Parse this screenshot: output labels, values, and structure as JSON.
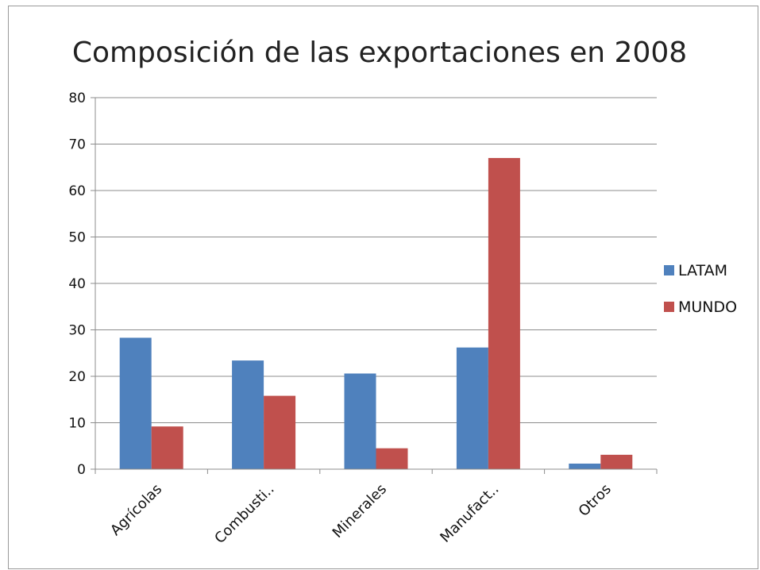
{
  "chart_data": {
    "type": "bar",
    "title": "Composición de las exportaciones en 2008",
    "categories": [
      "Agrícolas",
      "Combusti..",
      "Minerales",
      "Manufact..",
      "Otros"
    ],
    "series": [
      {
        "name": "LATAM",
        "values": [
          28.3,
          23.4,
          20.6,
          26.2,
          1.2
        ],
        "color": "#4f81bd"
      },
      {
        "name": "MUNDO",
        "values": [
          9.2,
          15.8,
          4.5,
          67.0,
          3.1
        ],
        "color": "#c0504d"
      }
    ],
    "ylim": [
      0,
      80
    ],
    "yticks": [
      0,
      10,
      20,
      30,
      40,
      50,
      60,
      70,
      80
    ],
    "grid": true,
    "legend": "right",
    "xlabel": "",
    "ylabel": ""
  }
}
